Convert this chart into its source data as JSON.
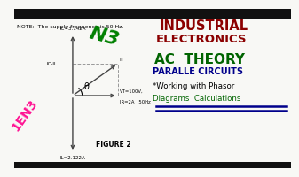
{
  "bg_color": "#f8f8f5",
  "note_text": "NOTE:  The supply frequency is 50 Hz.",
  "figure_label": "FIGURE 2",
  "title1": "INDUSTRIAL",
  "title2": "ELECTRONICS",
  "title3": "AC  THEORY",
  "title4": "PARALLE CIRCUITS",
  "title5": "*Working with Phasor",
  "title6": "Diagrams  Calculations",
  "n3_text": "N3",
  "len3_text": "1EN3",
  "ic_label": "IC=3.142A",
  "ic_il_label": "IC-IL",
  "it_label": "IT",
  "ir_label": "IR=2A",
  "vt_label": "VT=100V,",
  "hz_label": "50Hz",
  "il_label": "IL=2.122A",
  "theta_label": "θ",
  "arrow_color": "#444444",
  "dashed_color": "#999999",
  "title1_color": "#8b0000",
  "title2_color": "#8b0000",
  "title3_color": "#006400",
  "title4_color": "#00008b",
  "title5_color": "#000000",
  "title6_color": "#006400",
  "n3_color": "#008000",
  "len3_color": "#ff1493",
  "underline_color": "#00008b",
  "black_bar": "#111111"
}
